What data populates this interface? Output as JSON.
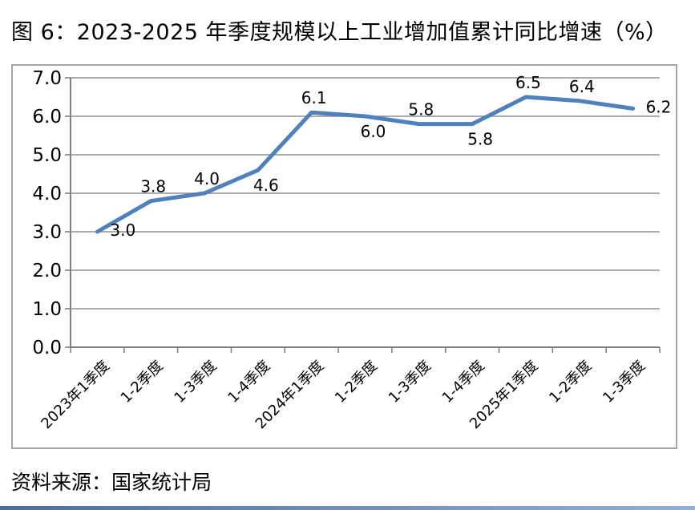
{
  "page": {
    "title": "图 6：2023-2025 年季度规模以上工业增加值累计同比增速（%）",
    "source": "资料来源：国家统计局"
  },
  "colors": {
    "line": "#4F81BD",
    "grid": "#8F8F8F",
    "axis": "#808080",
    "frame": "#A6A6A6",
    "text": "#000000",
    "footer_bar_start": "#4a6f9e",
    "footer_bar_end": "#8fb0d8"
  },
  "chart_data": {
    "type": "line",
    "title": "图 6：2023-2025 年季度规模以上工业增加值累计同比增速（%）",
    "categories": [
      "2023年1季度",
      "1-2季度",
      "1-3季度",
      "1-4季度",
      "2024年1季度",
      "1-2季度",
      "1-3季度",
      "1-4季度",
      "2025年1季度",
      "1-2季度",
      "1-3季度"
    ],
    "values": [
      3.0,
      3.8,
      4.0,
      4.6,
      6.1,
      6.0,
      5.8,
      5.8,
      6.5,
      6.4,
      6.2
    ],
    "data_labels": [
      "3.0",
      "3.8",
      "4.0",
      "4.6",
      "6.1",
      "6.0",
      "5.8",
      "5.8",
      "6.5",
      "6.4",
      "6.2"
    ],
    "label_placement": [
      "right",
      "above",
      "above",
      "below",
      "above",
      "below",
      "above",
      "below",
      "above",
      "above",
      "right"
    ],
    "xlabel": "",
    "ylabel": "",
    "ylim": [
      0.0,
      7.0
    ],
    "ytick_step": 1.0,
    "yticks": [
      "0.0",
      "1.0",
      "2.0",
      "3.0",
      "4.0",
      "5.0",
      "6.0",
      "7.0"
    ],
    "grid": "horizontal-on",
    "legend": "none",
    "source": "资料来源：国家统计局"
  }
}
